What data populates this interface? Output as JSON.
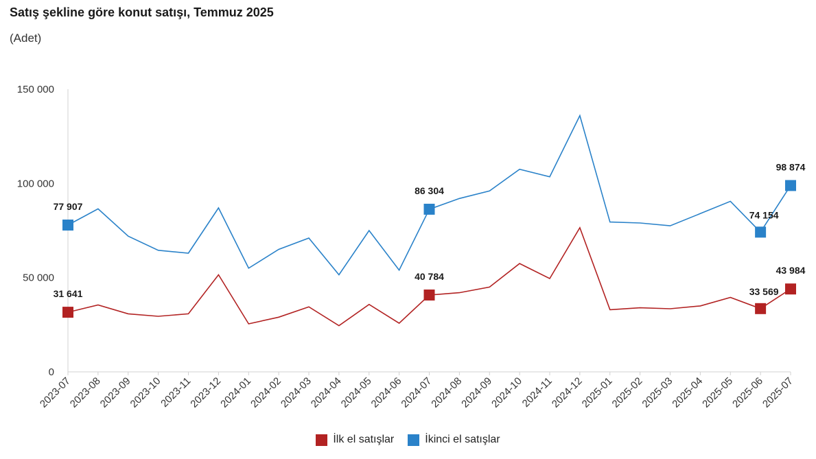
{
  "chart_data": {
    "type": "line",
    "title": "Satış şekline göre konut satışı, Temmuz 2025",
    "subtitle": "(Adet)",
    "xlabel": "",
    "ylabel": "",
    "ylim": [
      0,
      150000
    ],
    "yticks": [
      0,
      50000,
      100000,
      150000
    ],
    "ytick_labels": [
      "0",
      "50 000",
      "100 000",
      "150 000"
    ],
    "categories": [
      "2023-07",
      "2023-08",
      "2023-09",
      "2023-10",
      "2023-11",
      "2023-12",
      "2024-01",
      "2024-02",
      "2024-03",
      "2024-04",
      "2024-05",
      "2024-06",
      "2024-07",
      "2024-08",
      "2024-09",
      "2024-10",
      "2024-11",
      "2024-12",
      "2025-01",
      "2025-02",
      "2025-03",
      "2025-04",
      "2025-05",
      "2025-06",
      "2025-07"
    ],
    "series": [
      {
        "name": "İlk el satışlar",
        "color": "#B22222",
        "values": [
          31641,
          35500,
          30800,
          29500,
          30800,
          51500,
          25500,
          29000,
          34500,
          24500,
          35800,
          25800,
          40784,
          42000,
          45000,
          57500,
          49500,
          76500,
          33000,
          34000,
          33500,
          35000,
          39500,
          33569,
          43984
        ],
        "labels": {
          "0": "31 641",
          "12": "40 784",
          "23": "33 569",
          "24": "43 984"
        }
      },
      {
        "name": "İkinci el satışlar",
        "color": "#2A82C9",
        "values": [
          77907,
          86500,
          72000,
          64500,
          63000,
          87000,
          55000,
          65000,
          71000,
          51500,
          75000,
          54000,
          86304,
          92000,
          96000,
          107500,
          103500,
          136000,
          79500,
          79000,
          77500,
          84000,
          90500,
          74154,
          98874
        ],
        "labels": {
          "0": "77 907",
          "12": "86 304",
          "23": "74 154",
          "24": "98 874"
        }
      }
    ],
    "legend_position": "bottom-center"
  }
}
